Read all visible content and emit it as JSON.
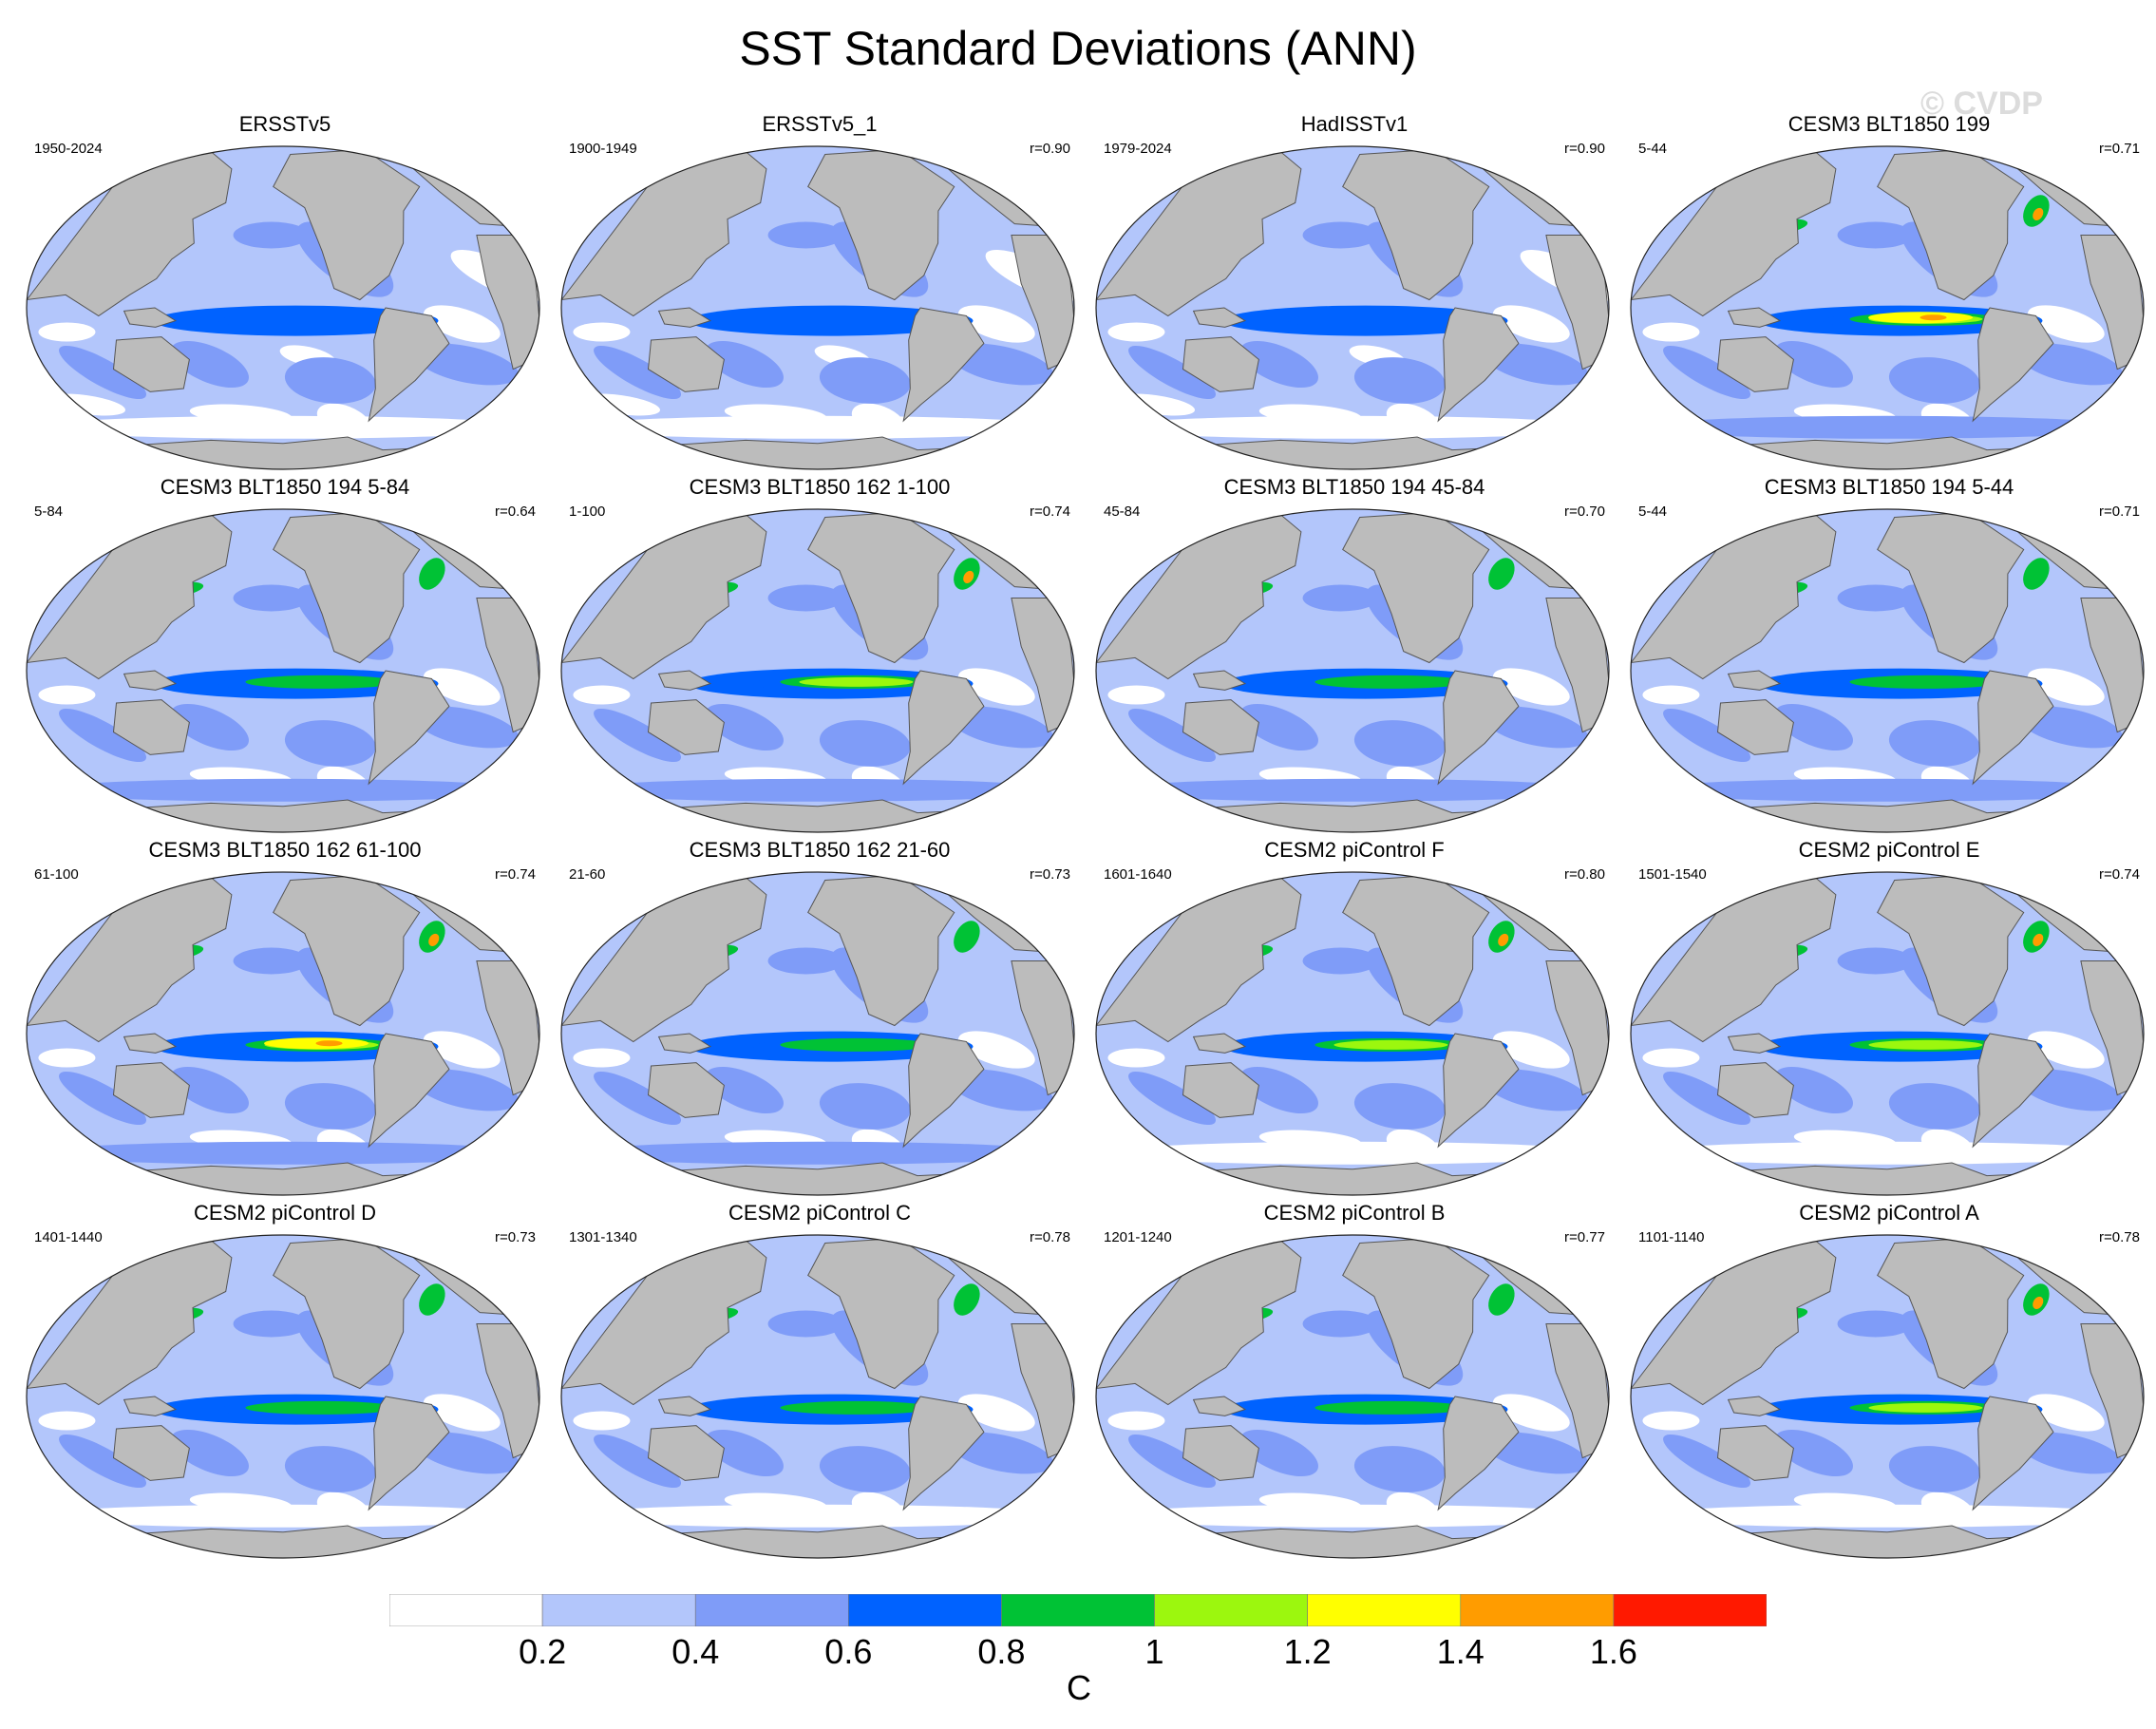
{
  "title": "SST Standard Deviations (ANN)",
  "watermark": "© CVDP",
  "panels": [
    {
      "title": "ERSSTv5",
      "years": "1950-2024",
      "corr": "",
      "intensity": 1,
      "style": "obs"
    },
    {
      "title": "ERSSTv5_1",
      "years": "1900-1949",
      "corr": "r=0.90",
      "intensity": 0,
      "style": "obs"
    },
    {
      "title": "HadISSTv1",
      "years": "1979-2024",
      "corr": "r=0.90",
      "intensity": 1,
      "style": "obs"
    },
    {
      "title": "CESM3 BLT1850 199",
      "years": "5-44",
      "corr": "r=0.71",
      "intensity": 4,
      "style": "cesm3"
    },
    {
      "title": "CESM3 BLT1850 194 5-84",
      "years": "5-84",
      "corr": "r=0.64",
      "intensity": 2,
      "style": "cesm3"
    },
    {
      "title": "CESM3 BLT1850 162 1-100",
      "years": "1-100",
      "corr": "r=0.74",
      "intensity": 3,
      "style": "cesm3"
    },
    {
      "title": "CESM3 BLT1850 194 45-84",
      "years": "45-84",
      "corr": "r=0.70",
      "intensity": 2,
      "style": "cesm3"
    },
    {
      "title": "CESM3 BLT1850 194 5-44",
      "years": "5-44",
      "corr": "r=0.71",
      "intensity": 2,
      "style": "cesm3"
    },
    {
      "title": "CESM3 BLT1850 162 61-100",
      "years": "61-100",
      "corr": "r=0.74",
      "intensity": 4,
      "style": "cesm3"
    },
    {
      "title": "CESM3 BLT1850 162 21-60",
      "years": "21-60",
      "corr": "r=0.73",
      "intensity": 2,
      "style": "cesm3"
    },
    {
      "title": "CESM2 piControl F",
      "years": "1601-1640",
      "corr": "r=0.80",
      "intensity": 3,
      "style": "cesm2"
    },
    {
      "title": "CESM2 piControl E",
      "years": "1501-1540",
      "corr": "r=0.74",
      "intensity": 3,
      "style": "cesm2"
    },
    {
      "title": "CESM2 piControl D",
      "years": "1401-1440",
      "corr": "r=0.73",
      "intensity": 2,
      "style": "cesm2"
    },
    {
      "title": "CESM2 piControl C",
      "years": "1301-1340",
      "corr": "r=0.78",
      "intensity": 2,
      "style": "cesm2"
    },
    {
      "title": "CESM2 piControl B",
      "years": "1201-1240",
      "corr": "r=0.77",
      "intensity": 2,
      "style": "cesm2"
    },
    {
      "title": "CESM2 piControl A",
      "years": "1101-1140",
      "corr": "r=0.78",
      "intensity": 3,
      "style": "cesm2"
    }
  ],
  "colorbar": {
    "colors": [
      "#ffffff",
      "#b3c6fb",
      "#7f9cf8",
      "#0062ff",
      "#00c235",
      "#9cf70e",
      "#ffff00",
      "#ff9c00",
      "#ff1900"
    ],
    "labels": [
      "0.2",
      "0.4",
      "0.6",
      "0.8",
      "1",
      "1.2",
      "1.4",
      "1.6"
    ],
    "units": "C"
  },
  "colors": {
    "land": "#bcbcbc",
    "land_edge": "#555555",
    "map_outline": "#222222"
  }
}
